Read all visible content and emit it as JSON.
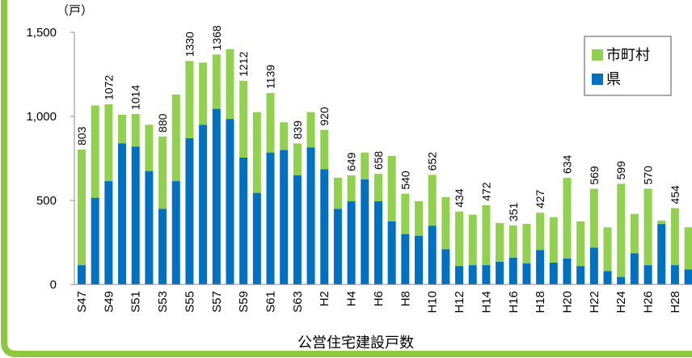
{
  "chart_data": {
    "type": "stacked_bar",
    "title": "公営住宅建設戸数",
    "y_unit": "（戸）",
    "categories": [
      "S47",
      null,
      "S49",
      null,
      "S51",
      null,
      "S53",
      null,
      "S55",
      null,
      "S57",
      null,
      "S59",
      null,
      "S61",
      null,
      "S63",
      null,
      "H2",
      null,
      "H4",
      null,
      "H6",
      null,
      "H8",
      null,
      "H10",
      null,
      "H12",
      null,
      "H14",
      null,
      "H16",
      null,
      "H18",
      null,
      "H20",
      null,
      "H22",
      null,
      "H24",
      null,
      "H26",
      null,
      "H28",
      null
    ],
    "series": [
      {
        "name": "県",
        "color": "#0070c0",
        "values": [
          115,
          516,
          615,
          840,
          820,
          675,
          450,
          615,
          870,
          950,
          1045,
          985,
          755,
          545,
          785,
          800,
          650,
          815,
          685,
          450,
          495,
          625,
          495,
          375,
          300,
          290,
          350,
          210,
          110,
          115,
          115,
          135,
          160,
          125,
          205,
          130,
          155,
          110,
          220,
          80,
          45,
          185,
          115,
          360,
          115,
          90
        ]
      },
      {
        "name": "市町村",
        "color": "#92d050",
        "values": [
          688,
          549,
          457,
          170,
          194,
          275,
          430,
          515,
          460,
          370,
          323,
          415,
          457,
          480,
          354,
          165,
          189,
          210,
          235,
          185,
          154,
          160,
          163,
          390,
          240,
          205,
          302,
          310,
          324,
          300,
          357,
          230,
          191,
          235,
          222,
          270,
          479,
          265,
          349,
          260,
          554,
          235,
          455,
          20,
          339,
          250
        ]
      }
    ],
    "totals": [
      803,
      null,
      1072,
      null,
      1014,
      null,
      880,
      null,
      1330,
      null,
      1368,
      null,
      1212,
      null,
      1139,
      null,
      839,
      null,
      920,
      null,
      649,
      null,
      658,
      null,
      540,
      null,
      652,
      null,
      434,
      null,
      472,
      null,
      351,
      null,
      427,
      null,
      634,
      null,
      569,
      null,
      599,
      null,
      570,
      null,
      454,
      null
    ],
    "ylim": [
      0,
      1500
    ],
    "yticks": [
      0,
      500,
      {
        "value": 1000,
        "label": "1,000"
      },
      {
        "value": 1500,
        "label": "1,500"
      }
    ],
    "grid": false,
    "legend": "upper right"
  }
}
